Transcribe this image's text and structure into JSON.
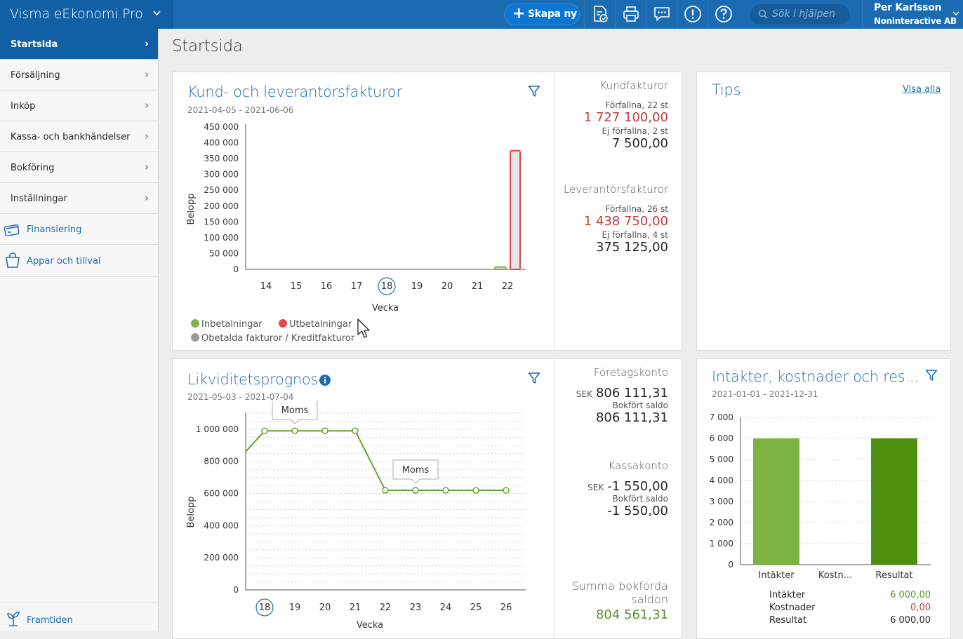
{
  "app": {
    "title": "Visma eEkonomi Pro"
  },
  "topbar": {
    "create_label": "Skapa ny",
    "search_placeholder": "Sök i hjälpen",
    "user_name": "Per Karlsson",
    "company": "Noninteractive AB",
    "brand_color": "#1b6bb2"
  },
  "sidebar": {
    "items": [
      {
        "label": "Startsida",
        "active": true
      },
      {
        "label": "Försäljning"
      },
      {
        "label": "Inköp"
      },
      {
        "label": "Kassa- och bankhändelser"
      },
      {
        "label": "Bokföring"
      },
      {
        "label": "Inställningar"
      }
    ],
    "links": [
      {
        "label": "Finansiering",
        "icon": "credit-card-icon"
      },
      {
        "label": "Appar och tillval",
        "icon": "shopping-bag-icon"
      }
    ],
    "footer": {
      "label": "Framtiden",
      "icon": "sprout-icon"
    }
  },
  "page": {
    "title": "Startsida"
  },
  "invoices_card": {
    "title": "Kund- och leverantörsfakturor",
    "period": "2021-04-05 - 2021-06-06",
    "customer": {
      "heading": "Kundfakturor",
      "overdue_label": "Förfallna, 22 st",
      "overdue_value": "1 727 100,00",
      "not_due_label": "Ej förfallna, 2 st",
      "not_due_value": "7 500,00"
    },
    "supplier": {
      "heading": "Leverantörsfakturor",
      "overdue_label": "Förfallna, 26 st",
      "overdue_value": "1 438 750,00",
      "not_due_label": "Ej förfallna, 4 st",
      "not_due_value": "375 125,00"
    },
    "legend": {
      "in": "Inbetalningar",
      "out": "Utbetalningar",
      "unpaid": "Obetalda fakturor / Kreditfakturor"
    }
  },
  "tips_card": {
    "title": "Tips",
    "link": "Visa alla"
  },
  "liquidity_card": {
    "title": "Likviditetsprognos",
    "period": "2021-05-03 - 2021-07-04",
    "company_account": {
      "heading": "Företagskonto",
      "currency": "SEK",
      "value": "806 111,31",
      "booked_label": "Bokfört saldo",
      "booked_value": "806 111,31"
    },
    "cash_account": {
      "heading": "Kassakonto",
      "currency": "SEK",
      "value": "-1 550,00",
      "booked_label": "Bokfört saldo",
      "booked_value": "-1 550,00"
    },
    "sum": {
      "heading_line1": "Summa bokförda",
      "heading_line2": "saldon",
      "value": "804 561,31"
    }
  },
  "income_card": {
    "title": "Intäkter, kostnader och res...",
    "period": "2021-01-01 - 2021-12-31",
    "table": [
      {
        "label": "Intäkter",
        "value": "6 000,00",
        "color": "#5a8d2a"
      },
      {
        "label": "Kostnader",
        "value": "0,00",
        "color": "#c23a3a"
      },
      {
        "label": "Resultat",
        "value": "6 000,00",
        "color": "#252626"
      }
    ]
  },
  "chart_data": [
    {
      "type": "bar",
      "xlabel": "Vecka",
      "ylabel": "Belopp",
      "ylim": [
        0,
        450000
      ],
      "yticks": [
        "450 000",
        "400 000",
        "350 000",
        "300 000",
        "250 000",
        "200 000",
        "150 000",
        "100 000",
        "50 000",
        "0"
      ],
      "categories": [
        "14",
        "15",
        "16",
        "17",
        "18",
        "19",
        "20",
        "21",
        "22"
      ],
      "highlight_category": "18",
      "series": [
        {
          "name": "Inbetalningar",
          "color": "#7ab648",
          "values": [
            0,
            0,
            0,
            0,
            0,
            0,
            0,
            0,
            7500
          ]
        },
        {
          "name": "Utbetalningar",
          "color": "#e0474c",
          "values": [
            0,
            0,
            0,
            0,
            0,
            0,
            0,
            0,
            375125
          ]
        },
        {
          "name": "Obetalda fakturor / Kreditfakturor",
          "color": "#999999",
          "values": [
            0,
            0,
            0,
            0,
            0,
            0,
            0,
            0,
            0
          ]
        }
      ],
      "grid": true
    },
    {
      "type": "line",
      "xlabel": "Vecka",
      "ylabel": "Belopp",
      "ylim": [
        0,
        1100000
      ],
      "yticks": [
        "1 000 000",
        "800 000",
        "600 000",
        "400 000",
        "200 000",
        "0"
      ],
      "categories": [
        "18",
        "19",
        "20",
        "21",
        "22",
        "23",
        "24",
        "25",
        "26"
      ],
      "highlight_category": "18",
      "series": [
        {
          "color": "#6a9f2e",
          "start_value": 860000,
          "values": [
            990000,
            990000,
            990000,
            990000,
            620000,
            620000,
            620000,
            620000,
            620000
          ]
        }
      ],
      "annotations": [
        {
          "label": "Moms",
          "category": "19"
        },
        {
          "label": "Moms",
          "category": "23"
        }
      ],
      "grid": true
    },
    {
      "type": "bar",
      "ylim": [
        0,
        7000
      ],
      "yticks": [
        "7 000",
        "6 000",
        "5 000",
        "4 000",
        "3 000",
        "2 000",
        "1 000",
        "0"
      ],
      "categories": [
        "Intäkter",
        "Kostn...",
        "Resultat"
      ],
      "values": [
        6000,
        0,
        6000
      ],
      "colors": [
        "#7cb342",
        "#c23a3a",
        "#4f8f0f"
      ],
      "grid": true
    }
  ]
}
